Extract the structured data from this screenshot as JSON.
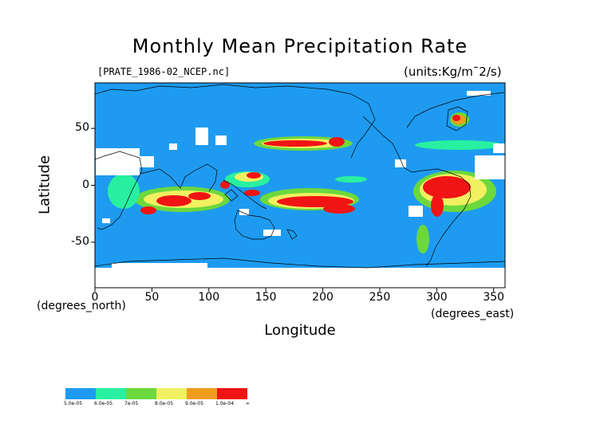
{
  "title": "Monthly Mean Precipitation Rate",
  "file_label": "[PRATE_1986-02_NCEP.nc]",
  "units_label": "(units:Kg/m¯2/s)",
  "x_axis": {
    "label": "Longitude",
    "unit_label": "(degrees_east)",
    "range": [
      0,
      360
    ],
    "ticks": [
      0,
      50,
      100,
      150,
      200,
      250,
      300,
      350
    ]
  },
  "y_axis": {
    "label": "Latitude",
    "unit_label": "(degrees_north)",
    "range": [
      -90,
      90
    ],
    "ticks": [
      50,
      0,
      -50
    ]
  },
  "colorbar": {
    "colors": [
      "#1e9bf0",
      "#28f0a0",
      "#6cd83c",
      "#f0f060",
      "#f09c1e",
      "#f01414"
    ],
    "labels": [
      "5.0e-05",
      "6.0e-05",
      "7e-05",
      "8.0e-05",
      "9.0e-05",
      "1.0e-04",
      "∞"
    ]
  },
  "colors": {
    "ocean_base": "#1e9bf0",
    "missing": "#ffffff",
    "coastline": "#000000"
  }
}
